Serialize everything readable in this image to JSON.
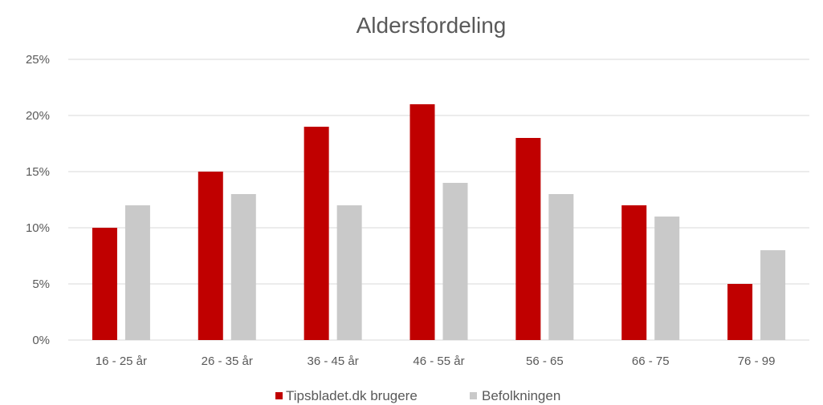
{
  "chart_data": {
    "type": "bar",
    "title": "Aldersfordeling",
    "categories": [
      "16 - 25 år",
      "26 - 35 år",
      "36 - 45 år",
      "46 - 55 år",
      "56 - 65",
      "66 - 75",
      "76 - 99"
    ],
    "series": [
      {
        "name": "Tipsbladet.dk brugere",
        "color": "#c00000",
        "values": [
          10,
          15,
          19,
          21,
          18,
          12,
          5
        ]
      },
      {
        "name": "Befolkningen",
        "color": "#c9c9c9",
        "values": [
          12,
          13,
          12,
          14,
          13,
          11,
          8
        ]
      }
    ],
    "ylim": [
      0,
      25
    ],
    "yticks": [
      0,
      5,
      10,
      15,
      20,
      25
    ],
    "ytick_labels": [
      "0%",
      "5%",
      "10%",
      "15%",
      "20%",
      "25%"
    ],
    "grid": true,
    "legend_position": "bottom"
  }
}
